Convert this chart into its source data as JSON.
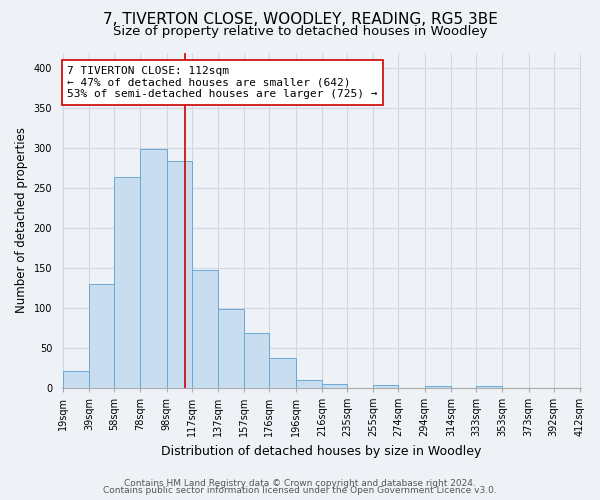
{
  "title": "7, TIVERTON CLOSE, WOODLEY, READING, RG5 3BE",
  "subtitle": "Size of property relative to detached houses in Woodley",
  "xlabel": "Distribution of detached houses by size in Woodley",
  "ylabel": "Number of detached properties",
  "bin_labels": [
    "19sqm",
    "39sqm",
    "58sqm",
    "78sqm",
    "98sqm",
    "117sqm",
    "137sqm",
    "157sqm",
    "176sqm",
    "196sqm",
    "216sqm",
    "235sqm",
    "255sqm",
    "274sqm",
    "294sqm",
    "314sqm",
    "333sqm",
    "353sqm",
    "373sqm",
    "392sqm",
    "412sqm"
  ],
  "bar_heights": [
    21,
    130,
    264,
    299,
    284,
    147,
    98,
    68,
    37,
    9,
    5,
    0,
    3,
    0,
    2,
    0,
    2,
    0,
    0,
    0
  ],
  "bar_color": "#c8ddef",
  "bar_edge_color": "#6aaad4",
  "vline_x": 112,
  "vline_color": "#cc0000",
  "annotation_text": "7 TIVERTON CLOSE: 112sqm\n← 47% of detached houses are smaller (642)\n53% of semi-detached houses are larger (725) →",
  "annotation_box_edgecolor": "#cc0000",
  "annotation_box_facecolor": "#ffffff",
  "ylim": [
    0,
    420
  ],
  "footer_line1": "Contains HM Land Registry data © Crown copyright and database right 2024.",
  "footer_line2": "Contains public sector information licensed under the Open Government Licence v3.0.",
  "background_color": "#eef2f7",
  "grid_color": "#d0d8e4",
  "title_fontsize": 11,
  "subtitle_fontsize": 9.5,
  "xlabel_fontsize": 9,
  "ylabel_fontsize": 8.5,
  "footer_fontsize": 6.5,
  "tick_fontsize": 7
}
